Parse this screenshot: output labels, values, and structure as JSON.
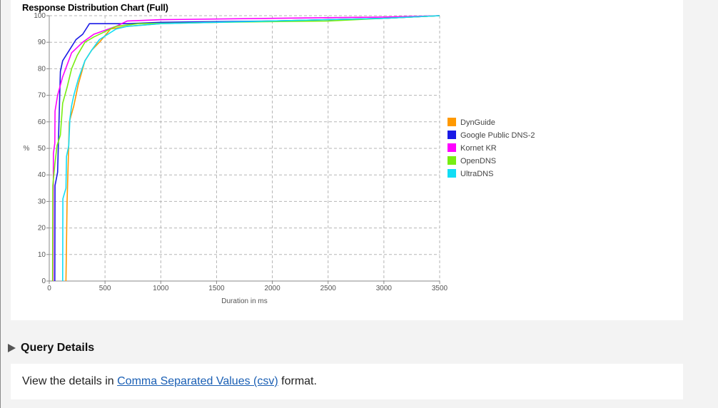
{
  "chart_panel": {
    "title": "Response Distribution Chart (Full)"
  },
  "chart_data": {
    "type": "line",
    "title": "Response Distribution Chart (Full)",
    "xlabel": "Duration in ms",
    "ylabel": "%",
    "xlim": [
      0,
      3500
    ],
    "ylim": [
      0,
      100
    ],
    "x_ticks": [
      0,
      500,
      1000,
      1500,
      2000,
      2500,
      3000,
      3500
    ],
    "y_ticks": [
      0,
      10,
      20,
      30,
      40,
      50,
      60,
      70,
      80,
      90,
      100
    ],
    "grid": true,
    "legend_placement": "right",
    "series": [
      {
        "name": "DynGuide",
        "color": "#ff9900",
        "points": [
          [
            150,
            0
          ],
          [
            160,
            30
          ],
          [
            170,
            45
          ],
          [
            180,
            60
          ],
          [
            220,
            66
          ],
          [
            260,
            74
          ],
          [
            320,
            83
          ],
          [
            380,
            87
          ],
          [
            450,
            90
          ],
          [
            550,
            95
          ],
          [
            700,
            96
          ],
          [
            1000,
            97
          ],
          [
            2000,
            98
          ],
          [
            3000,
            99
          ],
          [
            3500,
            100
          ]
        ]
      },
      {
        "name": "Google Public DNS-2",
        "color": "#1a1ae6",
        "points": [
          [
            50,
            0
          ],
          [
            52,
            36
          ],
          [
            75,
            41
          ],
          [
            100,
            79
          ],
          [
            120,
            83
          ],
          [
            180,
            87
          ],
          [
            240,
            91
          ],
          [
            300,
            93
          ],
          [
            360,
            97
          ],
          [
            700,
            97
          ],
          [
            1000,
            97.5
          ],
          [
            2000,
            98
          ],
          [
            3000,
            99
          ],
          [
            3500,
            100
          ]
        ]
      },
      {
        "name": "Kornet KR",
        "color": "#ff00ff",
        "points": [
          [
            35,
            0
          ],
          [
            37,
            48
          ],
          [
            50,
            52
          ],
          [
            52,
            64
          ],
          [
            75,
            70
          ],
          [
            120,
            77
          ],
          [
            200,
            86
          ],
          [
            300,
            90
          ],
          [
            400,
            93
          ],
          [
            600,
            96
          ],
          [
            700,
            98
          ],
          [
            1000,
            98.5
          ],
          [
            2000,
            99
          ],
          [
            3000,
            99.5
          ],
          [
            3500,
            100
          ]
        ]
      },
      {
        "name": "OpenDNS",
        "color": "#77ee11",
        "points": [
          [
            30,
            0
          ],
          [
            32,
            36
          ],
          [
            50,
            44
          ],
          [
            70,
            51
          ],
          [
            100,
            55
          ],
          [
            120,
            67
          ],
          [
            160,
            73
          ],
          [
            200,
            80
          ],
          [
            250,
            85
          ],
          [
            320,
            90
          ],
          [
            400,
            92
          ],
          [
            500,
            94
          ],
          [
            600,
            96
          ],
          [
            800,
            97
          ],
          [
            1500,
            97.5
          ],
          [
            2500,
            98
          ],
          [
            3500,
            100
          ]
        ]
      },
      {
        "name": "UltraDNS",
        "color": "#11ddf5",
        "points": [
          [
            120,
            0
          ],
          [
            122,
            31
          ],
          [
            150,
            35
          ],
          [
            155,
            47
          ],
          [
            175,
            51
          ],
          [
            185,
            61
          ],
          [
            200,
            66
          ],
          [
            220,
            70
          ],
          [
            260,
            76
          ],
          [
            320,
            83
          ],
          [
            380,
            87
          ],
          [
            450,
            91
          ],
          [
            600,
            95
          ],
          [
            700,
            96
          ],
          [
            1000,
            97
          ],
          [
            2000,
            98
          ],
          [
            3000,
            99
          ],
          [
            3500,
            100
          ]
        ]
      }
    ]
  },
  "query_details": {
    "header": "Query Details",
    "text_before": "View the details in ",
    "link_label": "Comma Separated Values (csv)",
    "text_after": " format."
  }
}
